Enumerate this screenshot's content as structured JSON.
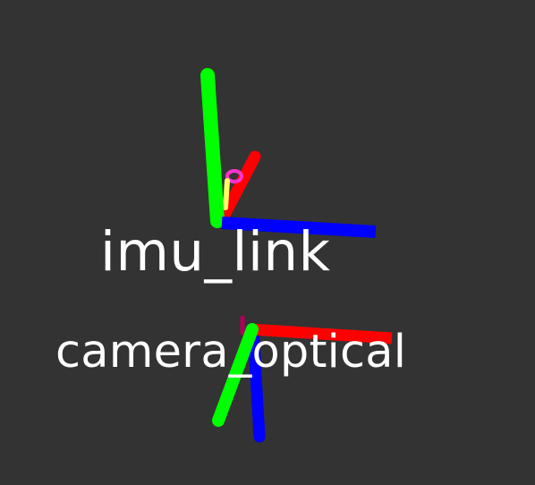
{
  "viewport": {
    "background": "#333333"
  },
  "colors": {
    "x_axis": "#ff0000",
    "y_axis": "#00ff00",
    "z_axis": "#0000ff",
    "label": "#ffffff"
  },
  "frames": [
    {
      "name": "imu_link"
    },
    {
      "name": "camera_optical"
    }
  ]
}
